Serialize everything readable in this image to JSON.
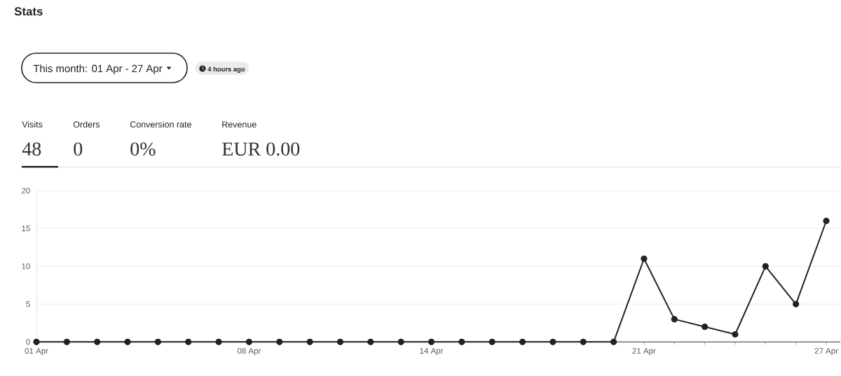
{
  "chart_data": {
    "type": "line",
    "title": "Stats",
    "subtitle": "This month: 01 Apr - 27 Apr",
    "annotations": [
      "4 hours ago",
      "Visits",
      "48",
      "Orders",
      "0",
      "Conversion rate",
      "0%",
      "Revenue",
      "EUR 0.00"
    ],
    "categories": [
      "01 Apr",
      null,
      null,
      null,
      null,
      null,
      null,
      "08 Apr",
      null,
      null,
      null,
      null,
      null,
      "14 Apr",
      null,
      null,
      null,
      null,
      null,
      null,
      "21 Apr",
      null,
      null,
      null,
      null,
      null,
      "27 Apr"
    ],
    "series": [
      {
        "color": "#222222",
        "values": [
          0,
          0,
          0,
          0,
          0,
          0,
          0,
          0,
          0,
          0,
          0,
          0,
          0,
          0,
          0,
          0,
          0,
          0,
          0,
          0,
          11,
          3,
          2,
          1,
          10,
          5,
          16
        ]
      }
    ],
    "ylim": [
      0,
      20
    ],
    "yticks": [
      0,
      5,
      10,
      15,
      20
    ],
    "grid": "y",
    "marker": "circle",
    "line_style": "solid"
  }
}
